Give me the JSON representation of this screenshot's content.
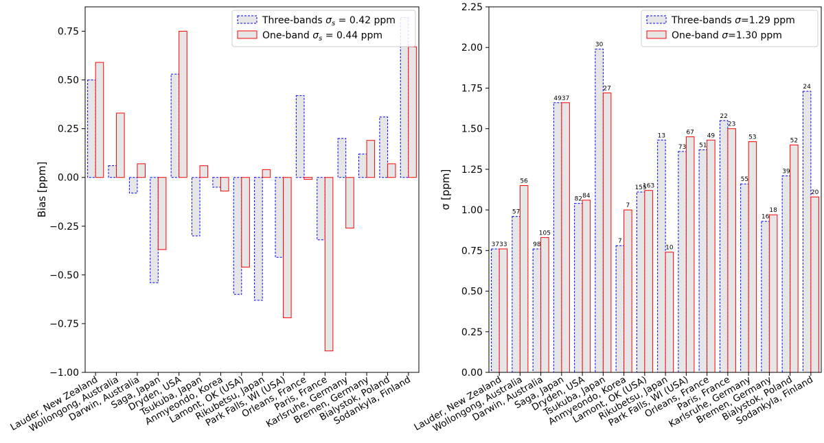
{
  "chart_data": [
    {
      "type": "bar",
      "title": "",
      "xlabel": "",
      "ylabel": "Bias [ppm]",
      "ylim": [
        -1.0,
        0.875
      ],
      "yticks": [
        "−1.00",
        "−0.75",
        "−0.50",
        "−0.25",
        "0.00",
        "0.25",
        "0.50",
        "0.75"
      ],
      "ytick_values": [
        -1.0,
        -0.75,
        -0.5,
        -0.25,
        0.0,
        0.25,
        0.5,
        0.75
      ],
      "grid": false,
      "legend_position": "top-right",
      "categories": [
        "Lauder, New Zealand",
        "Wollongong, Australia",
        "Darwin, Australia",
        "Saga, Japan",
        "Dryden, USA",
        "Tsukuba, Japan",
        "Anmyeondo, Korea",
        "Lamont, OK (USA)",
        "Rikubetsu, Japan",
        "Park Falls, WI (USA)",
        "Orleans, France",
        "Paris, France",
        "Karlsruhe, Germany",
        "Bremen, Germany",
        "Bialystok, Poland",
        "Sodankyla, Finland"
      ],
      "series": [
        {
          "name": "Three-bands σs = 0.42 ppm",
          "legend_prefix": "Three-bands ",
          "legend_sym": "σ",
          "legend_sub": "s",
          "legend_suffix": " = 0.42 ppm",
          "color": "#0000ff",
          "dashed": true,
          "values": [
            0.5,
            0.06,
            -0.08,
            -0.54,
            0.53,
            -0.3,
            -0.05,
            -0.6,
            -0.63,
            -0.41,
            0.42,
            -0.32,
            0.2,
            0.12,
            0.31,
            0.82
          ]
        },
        {
          "name": "One-band σs = 0.44 ppm",
          "legend_prefix": "One-band ",
          "legend_sym": "σ",
          "legend_sub": "s",
          "legend_suffix": " = 0.44 ppm",
          "color": "#ff0000",
          "dashed": false,
          "values": [
            0.59,
            0.33,
            0.07,
            -0.37,
            0.75,
            0.06,
            -0.07,
            -0.46,
            0.04,
            -0.72,
            -0.01,
            -0.89,
            -0.26,
            0.19,
            0.07,
            0.67
          ]
        }
      ]
    },
    {
      "type": "bar",
      "title": "",
      "xlabel": "",
      "ylabel": "σ [ppm]",
      "ylim": [
        0.0,
        2.25
      ],
      "yticks": [
        "0.00",
        "0.25",
        "0.50",
        "0.75",
        "1.00",
        "1.25",
        "1.50",
        "1.75",
        "2.00",
        "2.25"
      ],
      "ytick_values": [
        0.0,
        0.25,
        0.5,
        0.75,
        1.0,
        1.25,
        1.5,
        1.75,
        2.0,
        2.25
      ],
      "grid": false,
      "legend_position": "top-right",
      "categories": [
        "Lauder, New Zealand",
        "Wollongong, Australia",
        "Darwin, Australia",
        "Saga, Japan",
        "Dryden, USA",
        "Tsukuba, Japan",
        "Anmyeondo, Korea",
        "Lamont, OK (USA)",
        "Rikubetsu, Japan",
        "Park Falls, WI (USA)",
        "Orleans, France",
        "Paris, France",
        "Karlsruhe, Germany",
        "Bremen, Germany",
        "Bialystok, Poland",
        "Sodankyla, Finland"
      ],
      "series": [
        {
          "name": "Three-bands σ=1.29 ppm",
          "legend_prefix": "Three-bands ",
          "legend_sym": "σ",
          "legend_sub": "",
          "legend_suffix": "=1.29 ppm",
          "color": "#0000ff",
          "dashed": true,
          "values": [
            0.76,
            0.96,
            0.76,
            1.66,
            1.04,
            1.99,
            0.78,
            1.11,
            1.43,
            1.36,
            1.37,
            1.55,
            1.16,
            0.93,
            1.21,
            1.73
          ],
          "counts": [
            "37",
            "57",
            "98",
            "49",
            "82",
            "30",
            "7",
            "155",
            "13",
            "73",
            "51",
            "22",
            "55",
            "16",
            "39",
            "24"
          ]
        },
        {
          "name": "One-band σ=1.30 ppm",
          "legend_prefix": "One-band ",
          "legend_sym": "σ",
          "legend_sub": "",
          "legend_suffix": "=1.30 ppm",
          "color": "#ff0000",
          "dashed": false,
          "values": [
            0.76,
            1.15,
            0.83,
            1.66,
            1.06,
            1.72,
            1.0,
            1.12,
            0.74,
            1.45,
            1.43,
            1.5,
            1.42,
            0.97,
            1.4,
            1.08
          ],
          "counts": [
            "33",
            "56",
            "105",
            "37",
            "84",
            "27",
            "7",
            "163",
            "10",
            "67",
            "49",
            "23",
            "53",
            "18",
            "52",
            "20"
          ]
        }
      ]
    }
  ]
}
